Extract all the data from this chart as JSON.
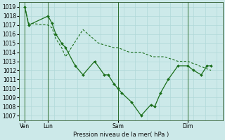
{
  "title": "Pression niveau de la mer( hPa )",
  "bg_color": "#cce9e9",
  "grid_color": "#b0d8d8",
  "line_color": "#1a6e1a",
  "ylim": [
    1006.5,
    1019.5
  ],
  "yticks": [
    1007,
    1008,
    1009,
    1010,
    1011,
    1012,
    1013,
    1014,
    1015,
    1016,
    1017,
    1018,
    1019
  ],
  "xtick_pos": [
    0,
    12,
    48,
    84
  ],
  "xtick_labels": [
    "Ven",
    "Lun",
    "Sam",
    "Dim"
  ],
  "xlim": [
    -3,
    102
  ],
  "series1_x": [
    0,
    2,
    12,
    14,
    16,
    19,
    21,
    26,
    30,
    36,
    41,
    43,
    46,
    48,
    50,
    55,
    60,
    65,
    67,
    70,
    74,
    79,
    84,
    87,
    91,
    94,
    96
  ],
  "series1_y": [
    1019.0,
    1017.0,
    1018.0,
    1017.2,
    1016.0,
    1015.0,
    1014.5,
    1012.5,
    1011.5,
    1013.0,
    1011.5,
    1011.5,
    1010.5,
    1010.0,
    1009.5,
    1008.5,
    1007.0,
    1008.2,
    1008.0,
    1009.5,
    1011.0,
    1012.5,
    1012.5,
    1012.0,
    1011.5,
    1012.5,
    1012.5
  ],
  "series2_x": [
    0,
    2,
    12,
    14,
    16,
    19,
    21,
    30,
    38,
    46,
    48,
    54,
    60,
    66,
    72,
    79,
    84,
    90,
    96
  ],
  "series2_y": [
    1019.0,
    1017.2,
    1017.0,
    1016.7,
    1015.5,
    1014.5,
    1013.5,
    1016.5,
    1015.0,
    1014.5,
    1014.5,
    1014.0,
    1014.0,
    1013.5,
    1013.5,
    1013.0,
    1013.0,
    1012.5,
    1012.0
  ],
  "vline_x": [
    0,
    12,
    48,
    84
  ],
  "marker_size": 2.5,
  "line_width": 0.9
}
